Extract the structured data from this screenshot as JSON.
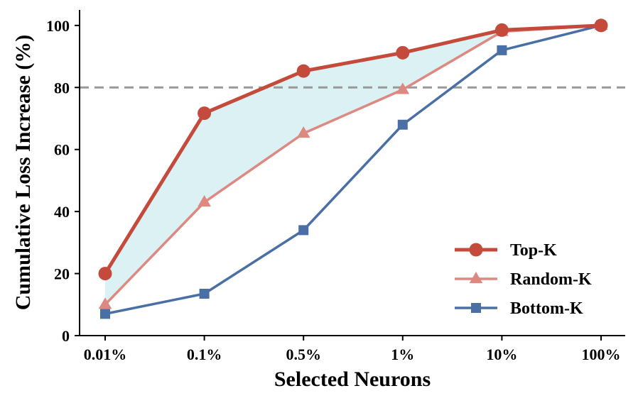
{
  "chart_data": {
    "type": "line",
    "title": "",
    "xlabel": "Selected Neurons",
    "ylabel": "Cumulative Loss Increase (%)",
    "categories": [
      "0.01%",
      "0.1%",
      "0.5%",
      "1%",
      "10%",
      "100%"
    ],
    "ylim": [
      0,
      105
    ],
    "yticks": [
      0,
      20,
      40,
      60,
      80,
      100
    ],
    "reference_line": {
      "y": 80,
      "style": "dashed",
      "color": "#999999"
    },
    "shaded_region": {
      "between": [
        "Top-K",
        "Random-K"
      ],
      "color": "#dcf1f3"
    },
    "legend_position": "lower-right",
    "series": [
      {
        "name": "Top-K",
        "marker": "circle",
        "color": "#c44a3b",
        "values": [
          20,
          71.7,
          85.3,
          91.2,
          98.5,
          100
        ]
      },
      {
        "name": "Random-K",
        "marker": "triangle",
        "color": "#dd8880",
        "values": [
          10,
          43,
          65.2,
          79.3,
          98,
          100
        ]
      },
      {
        "name": "Bottom-K",
        "marker": "square",
        "color": "#4a6fa5",
        "values": [
          7,
          13.5,
          34,
          68,
          92,
          100
        ]
      }
    ]
  }
}
